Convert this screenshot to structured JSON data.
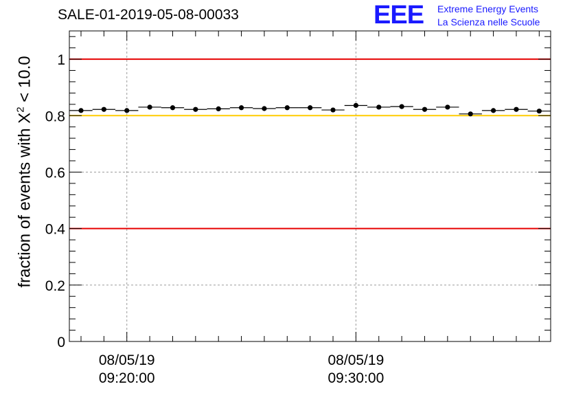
{
  "title": "SALE-01-2019-05-08-00033",
  "logo": {
    "mark": "EEE",
    "line1": "Extreme Energy Events",
    "line2": "La Scienza nelle Scuole"
  },
  "chart_data": {
    "type": "scatter",
    "ylabel_prefix": "fraction of events with ",
    "ylabel_symbol": "X",
    "ylabel_superscript": "2",
    "ylabel_suffix": " < 10.0",
    "ylim": [
      0,
      1.1
    ],
    "yticks": [
      {
        "v": 0,
        "label": "0"
      },
      {
        "v": 0.2,
        "label": "0.2"
      },
      {
        "v": 0.4,
        "label": "0.4"
      },
      {
        "v": 0.6,
        "label": "0.6"
      },
      {
        "v": 0.8,
        "label": "0.8"
      },
      {
        "v": 1,
        "label": "1"
      }
    ],
    "xticks": [
      {
        "bin": 2,
        "line1": "08/05/19",
        "line2": "09:20:00"
      },
      {
        "bin": 12,
        "line1": "08/05/19",
        "line2": "09:30:00"
      }
    ],
    "grid": true,
    "reference_lines": [
      {
        "y": 1.0,
        "color": "#e60000"
      },
      {
        "y": 0.8,
        "color": "#ffcc00"
      },
      {
        "y": 0.4,
        "color": "#e60000"
      }
    ],
    "values": [
      0.818,
      0.822,
      0.818,
      0.83,
      0.828,
      0.822,
      0.824,
      0.828,
      0.825,
      0.828,
      0.828,
      0.82,
      0.836,
      0.83,
      0.832,
      0.822,
      0.83,
      0.806,
      0.818,
      0.822,
      0.816
    ]
  }
}
